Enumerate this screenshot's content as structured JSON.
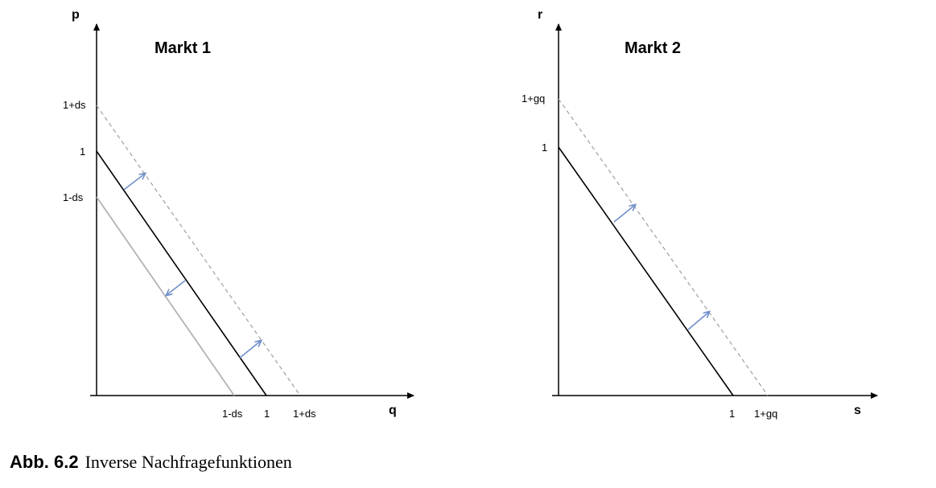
{
  "panels": [
    {
      "title": "Markt 1",
      "y_axis_label": "p",
      "x_axis_label": "q",
      "y_ticks": [
        "1+ds",
        "1",
        "1-ds"
      ],
      "x_ticks": [
        "1-ds",
        "1",
        "1+ds"
      ]
    },
    {
      "title": "Markt 2",
      "y_axis_label": "r",
      "x_axis_label": "s",
      "y_ticks": [
        "1+gq",
        "1"
      ],
      "x_ticks": [
        "1",
        "1+gq"
      ]
    }
  ],
  "caption": {
    "number": "Abb. 6.2",
    "text": "Inverse Nachfragefunktionen"
  },
  "colors": {
    "axis": "#000000",
    "demand": "#000000",
    "shift_up": "#a6a6a6",
    "shift_down": "#b3b3b3",
    "arrow": "#6f8fc9"
  }
}
